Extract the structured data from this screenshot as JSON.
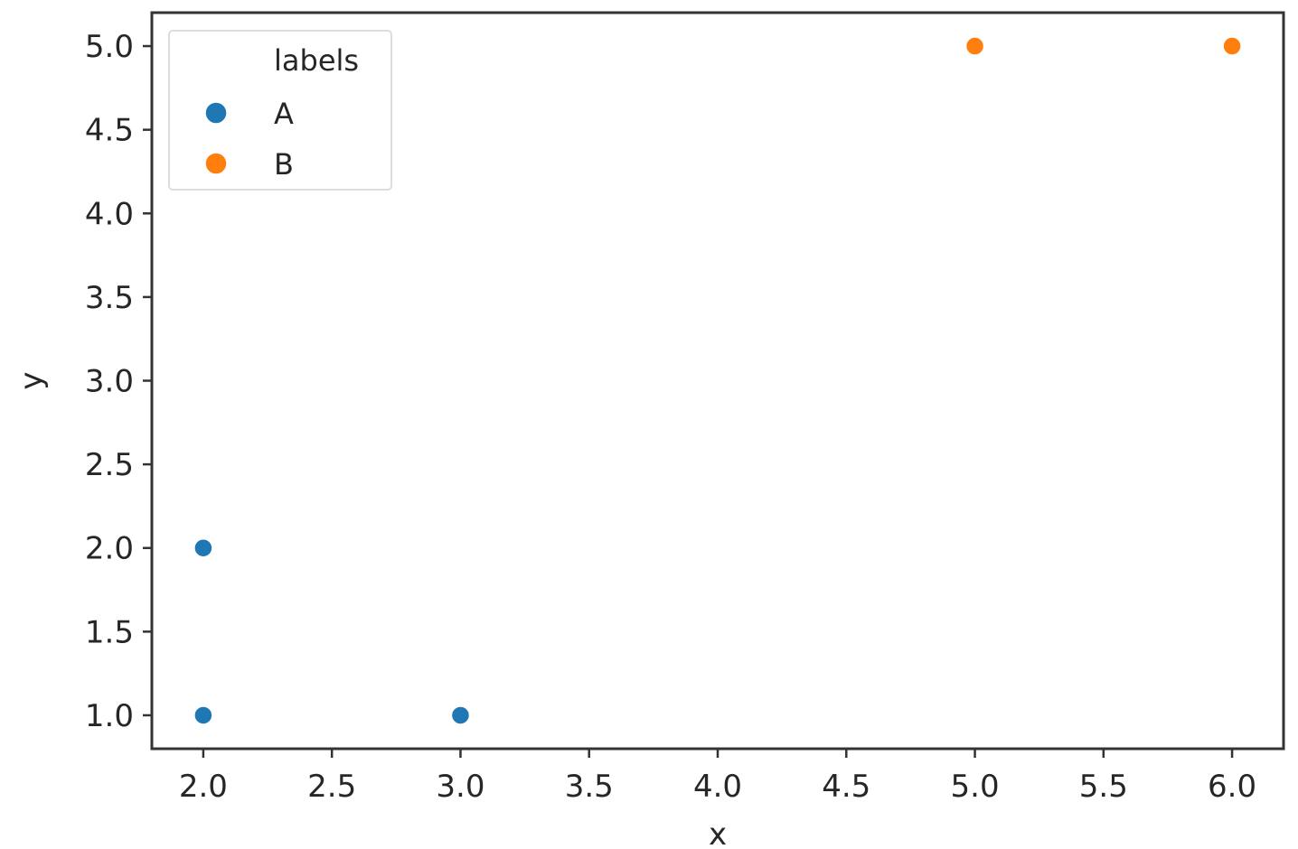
{
  "chart_data": {
    "type": "scatter",
    "xlabel": "x",
    "ylabel": "y",
    "xlim": [
      1.8,
      6.2
    ],
    "ylim": [
      0.8,
      5.2
    ],
    "x_ticks": [
      "2.0",
      "2.5",
      "3.0",
      "3.5",
      "4.0",
      "4.5",
      "5.0",
      "5.5",
      "6.0"
    ],
    "y_ticks": [
      "1.0",
      "1.5",
      "2.0",
      "2.5",
      "3.0",
      "3.5",
      "4.0",
      "4.5",
      "5.0"
    ],
    "grid": false,
    "legend": {
      "title": "labels",
      "placement": "top-left"
    },
    "series": [
      {
        "name": "A",
        "color": "#1f77b4",
        "points": [
          {
            "x": 2.0,
            "y": 2.0
          },
          {
            "x": 2.0,
            "y": 1.0
          },
          {
            "x": 3.0,
            "y": 1.0
          }
        ]
      },
      {
        "name": "B",
        "color": "#ff7f0e",
        "points": [
          {
            "x": 5.0,
            "y": 5.0
          },
          {
            "x": 6.0,
            "y": 5.0
          }
        ]
      }
    ]
  }
}
